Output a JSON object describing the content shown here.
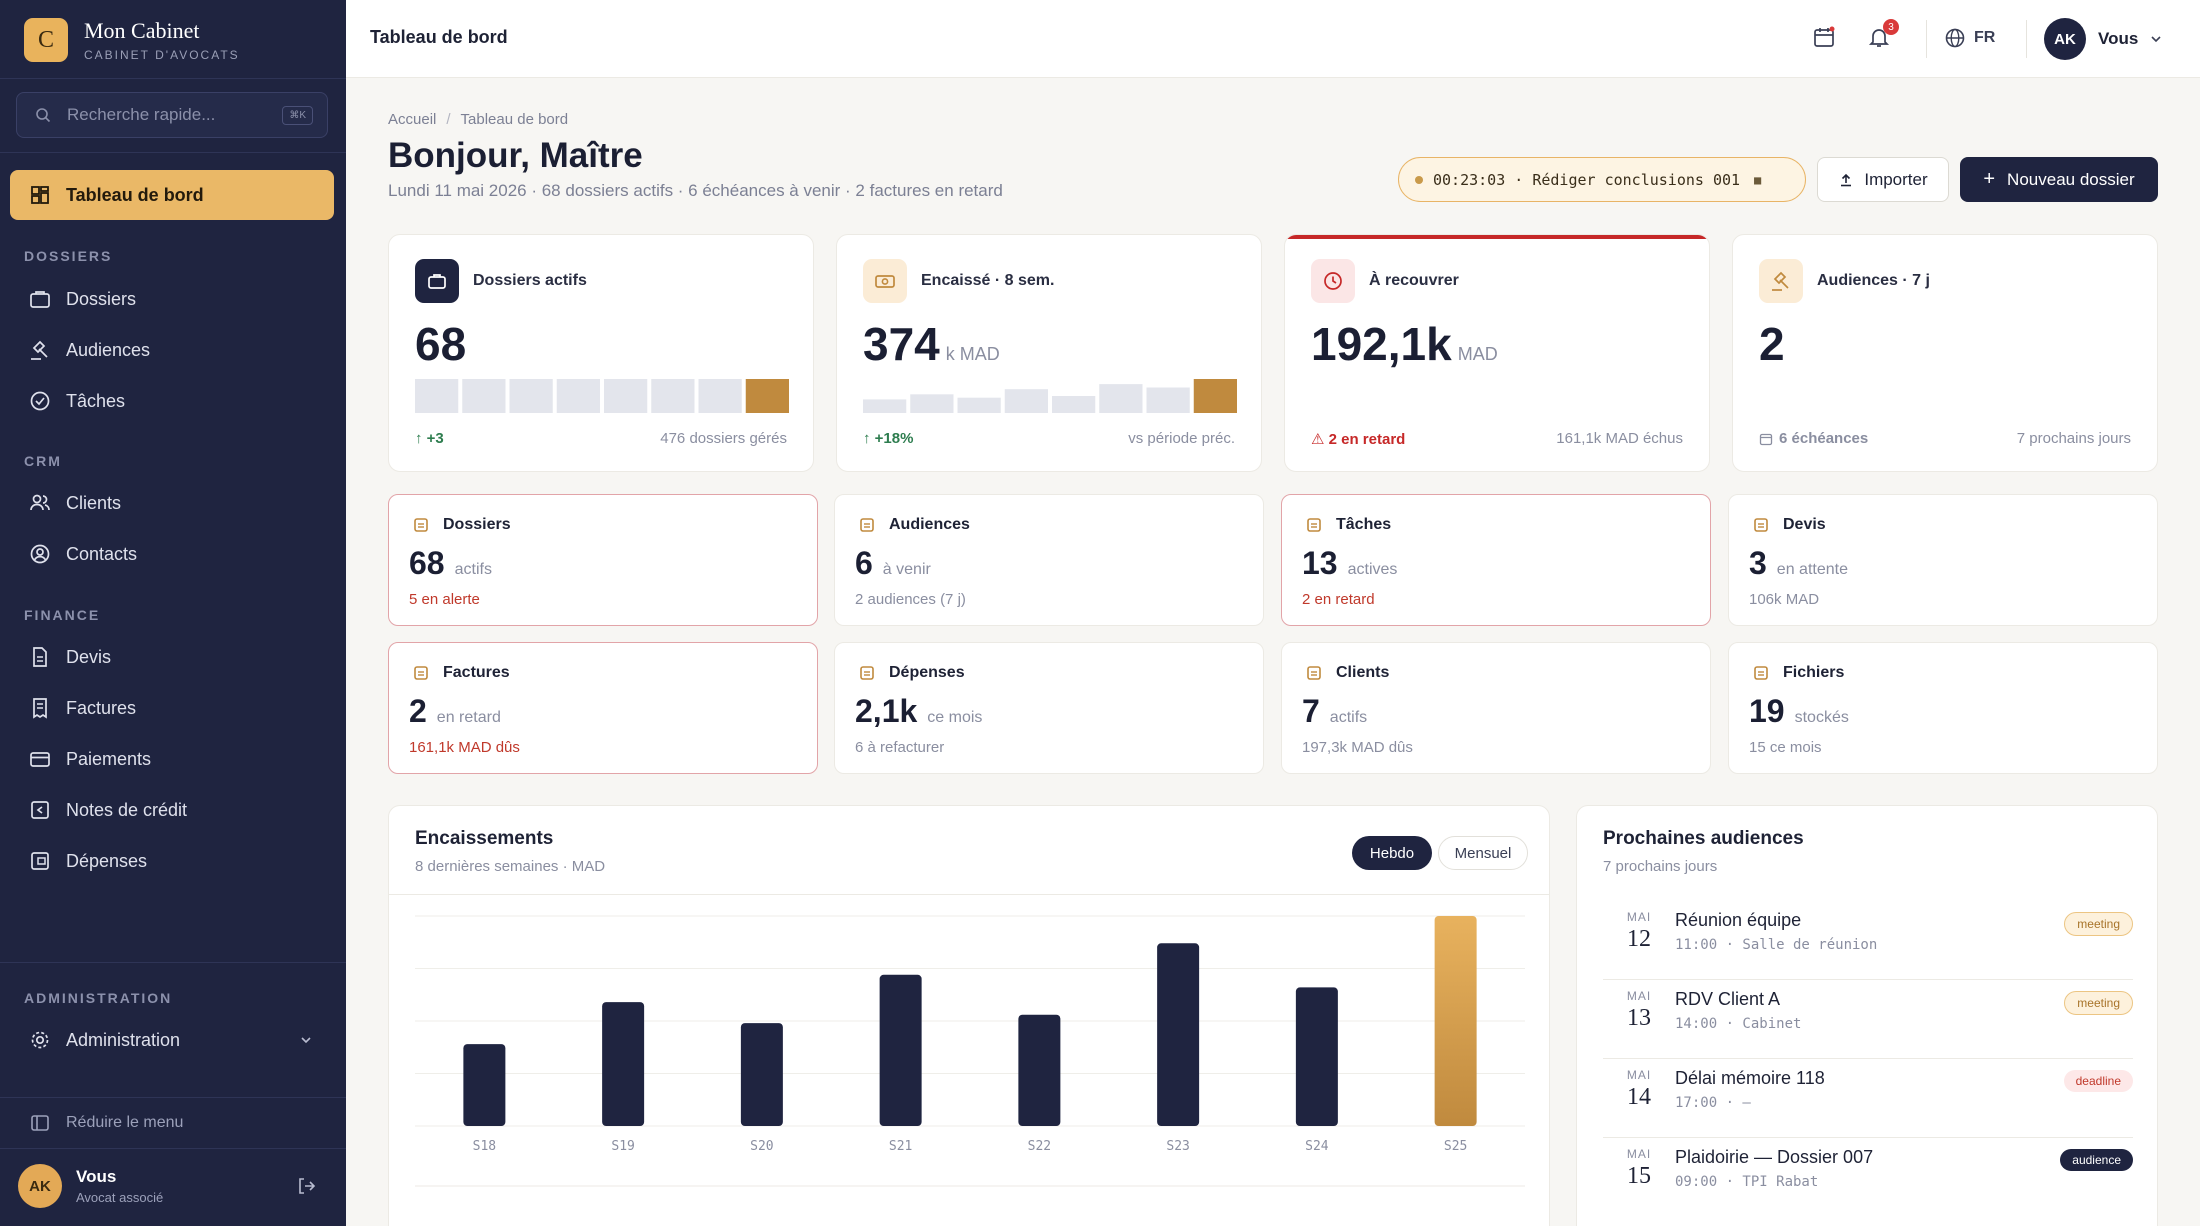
{
  "brand": {
    "logo": "C",
    "name": "Mon Cabinet",
    "subtitle": "CABINET D'AVOCATS"
  },
  "search": {
    "placeholder": "Recherche rapide...",
    "shortcut": "⌘K"
  },
  "sidebar": {
    "active": "Tableau de bord",
    "sections": [
      {
        "title": "DOSSIERS",
        "items": [
          "Dossiers",
          "Audiences",
          "Tâches"
        ]
      },
      {
        "title": "CRM",
        "items": [
          "Clients",
          "Contacts"
        ]
      },
      {
        "title": "FINANCE",
        "items": [
          "Devis",
          "Factures",
          "Paiements",
          "Notes de crédit",
          "Dépenses"
        ]
      },
      {
        "title": "ADMINISTRATION",
        "items": [
          "Administration"
        ]
      }
    ],
    "collapse_label": "Réduire le menu",
    "user": {
      "initials": "AK",
      "name": "Vous",
      "role": "Avocat associé"
    }
  },
  "topbar": {
    "title": "Tableau de bord",
    "notifications": "3",
    "language": "FR",
    "user_initials": "AK",
    "user_name": "Vous"
  },
  "page": {
    "breadcrumb": [
      "Accueil",
      "Tableau de bord"
    ],
    "greeting": "Bonjour, Maître",
    "summary": "Lundi 11 mai 2026 · 68 dossiers actifs · 6 échéances à venir · 2 factures en retard",
    "timer": "00:23:03 · Rédiger conclusions 001",
    "import_label": "Importer",
    "new_label": "Nouveau dossier"
  },
  "kpis": [
    {
      "label": "Dossiers actifs",
      "value": "68",
      "unit": "",
      "foot_left": "↑ +3",
      "foot_right": "476 dossiers gérés",
      "spark": [
        1,
        1,
        1,
        1,
        1,
        1,
        1,
        1
      ]
    },
    {
      "label": "Encaissé · 8 sem.",
      "value": "374",
      "unit": "k MAD",
      "foot_left": "↑ +18%",
      "foot_right": "vs période préc.",
      "spark": [
        0.4,
        0.55,
        0.45,
        0.7,
        0.5,
        0.85,
        0.75,
        1
      ]
    },
    {
      "label": "À recouvrer",
      "value": "192,1k",
      "unit": "MAD",
      "foot_left": "⚠ 2 en retard",
      "foot_right": "161,1k MAD échus"
    },
    {
      "label": "Audiences · 7 j",
      "value": "2",
      "unit": "",
      "foot_left": "6 échéances",
      "foot_right": "7 prochains jours"
    }
  ],
  "minis": [
    {
      "label": "Dossiers",
      "value": "68",
      "unit": "actifs",
      "sub": "5 en alerte",
      "alert": true
    },
    {
      "label": "Audiences",
      "value": "6",
      "unit": "à venir",
      "sub": "2 audiences (7 j)",
      "alert": false
    },
    {
      "label": "Tâches",
      "value": "13",
      "unit": "actives",
      "sub": "2 en retard",
      "alert": true
    },
    {
      "label": "Devis",
      "value": "3",
      "unit": "en attente",
      "sub": "106k MAD",
      "alert": false
    },
    {
      "label": "Factures",
      "value": "2",
      "unit": "en retard",
      "sub": "161,1k MAD dûs",
      "alert": true
    },
    {
      "label": "Dépenses",
      "value": "2,1k",
      "unit": "ce mois",
      "sub": "6 à refacturer",
      "alert": false
    },
    {
      "label": "Clients",
      "value": "7",
      "unit": "actifs",
      "sub": "197,3k MAD dûs",
      "alert": false
    },
    {
      "label": "Fichiers",
      "value": "19",
      "unit": "stockés",
      "sub": "15 ce mois",
      "alert": false
    }
  ],
  "encaissements": {
    "title": "Encaissements",
    "subtitle": "8 dernières semaines · MAD",
    "toggle": [
      "Hebdo",
      "Mensuel"
    ],
    "chart_data": {
      "type": "bar",
      "categories": [
        "S18",
        "S19",
        "S20",
        "S21",
        "S22",
        "S23",
        "S24",
        "S25"
      ],
      "values": [
        39,
        59,
        49,
        72,
        53,
        87,
        66,
        100
      ],
      "ylim": [
        0,
        100
      ],
      "highlight_last": true,
      "colors": {
        "bar": "#1f2440",
        "highlight": "#d19a45"
      }
    }
  },
  "audiences": {
    "title": "Prochaines audiences",
    "subtitle": "7 prochains jours",
    "items": [
      {
        "month": "MAI",
        "day": "12",
        "title": "Réunion équipe",
        "meta": "11:00 · Salle de réunion",
        "tag": "meeting"
      },
      {
        "month": "MAI",
        "day": "13",
        "title": "RDV Client A",
        "meta": "14:00 · Cabinet",
        "tag": "meeting"
      },
      {
        "month": "MAI",
        "day": "14",
        "title": "Délai mémoire 118",
        "meta": "17:00 · —",
        "tag": "deadline"
      },
      {
        "month": "MAI",
        "day": "15",
        "title": "Plaidoirie — Dossier 007",
        "meta": "09:00 · TPI Rabat",
        "tag": "audience"
      }
    ]
  }
}
